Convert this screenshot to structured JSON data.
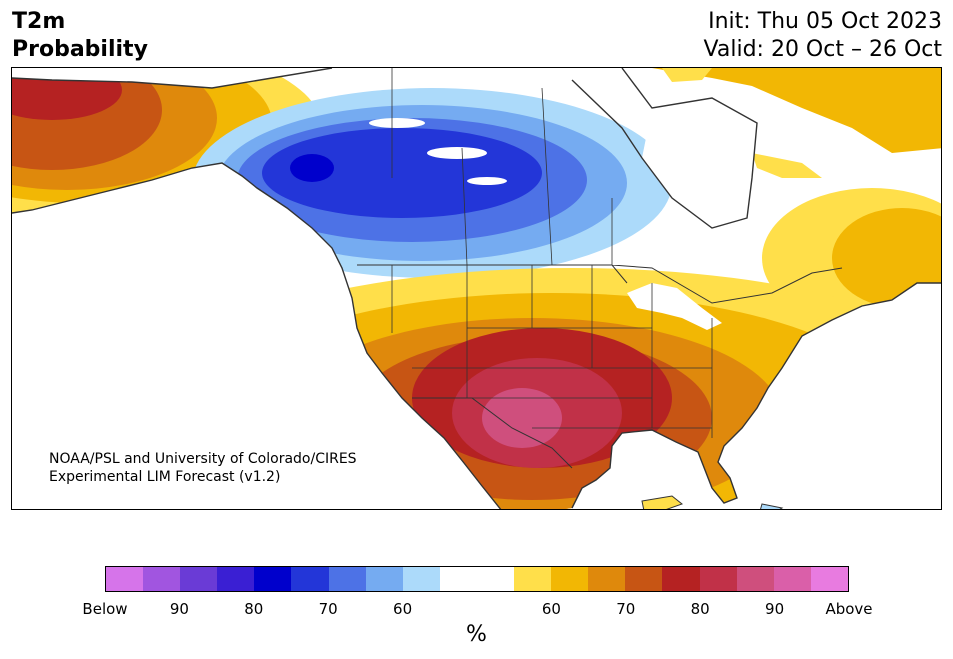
{
  "header": {
    "title_line1": "T2m",
    "title_line2": "Probability",
    "init_line": "Init: Thu 05 Oct 2023",
    "valid_line": "Valid: 20 Oct – 26 Oct"
  },
  "credit": {
    "line1": "NOAA/PSL and University of Colorado/CIRES",
    "line2": "Experimental LIM Forecast (v1.2)"
  },
  "colorbar": {
    "colors": [
      "#d674ea",
      "#a155e0",
      "#6a3bd6",
      "#3a1fd3",
      "#0000cc",
      "#2336d8",
      "#4d72e6",
      "#75abf1",
      "#acdafa",
      "#ffffff",
      "#ffffff",
      "#ffdf4a",
      "#f2b704",
      "#df890c",
      "#c75514",
      "#b52222",
      "#c13148",
      "#cf4f7d",
      "#da5fa9",
      "#e87be0"
    ],
    "labels": [
      "Below",
      "90",
      "80",
      "70",
      "60",
      "60",
      "70",
      "80",
      "90",
      "Above"
    ],
    "unit": "%"
  },
  "legend_colors": {
    "cold_strong": "#0000cc",
    "cold_mid": "#4d72e6",
    "cold_light": "#acdafa",
    "warm_light": "#ffdf4a",
    "warm_mid": "#df890c",
    "warm_strong": "#b52222",
    "warm_max": "#cf4f7d",
    "coast_line": "#333333"
  }
}
